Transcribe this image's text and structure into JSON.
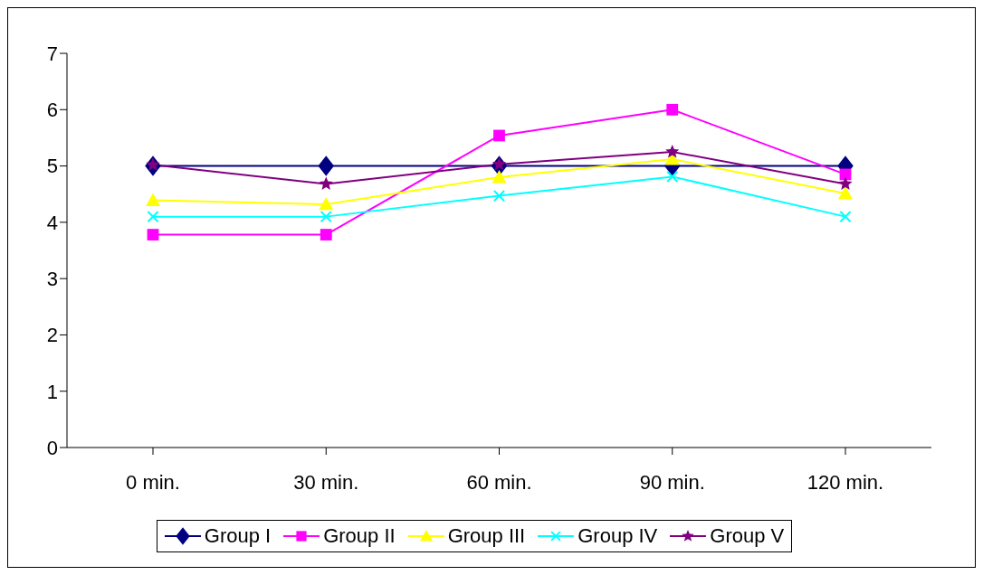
{
  "chart_data": {
    "type": "line",
    "categories": [
      "0 min.",
      "30 min.",
      "60 min.",
      "90 min.",
      "120 min."
    ],
    "ylim": [
      0,
      7
    ],
    "yticks": [
      0,
      1,
      2,
      3,
      4,
      5,
      6,
      7
    ],
    "grid": false,
    "legend": "bottom",
    "series": [
      {
        "name": "Group I",
        "color": "#000080",
        "marker": "diamond",
        "values": [
          5.0,
          5.0,
          5.0,
          5.0,
          5.0
        ]
      },
      {
        "name": "Group II",
        "color": "#ff00ff",
        "marker": "square",
        "values": [
          3.78,
          3.78,
          5.54,
          6.0,
          4.85
        ]
      },
      {
        "name": "Group III",
        "color": "#ffff00",
        "marker": "triangle",
        "values": [
          4.39,
          4.32,
          4.8,
          5.12,
          4.51
        ]
      },
      {
        "name": "Group IV",
        "color": "#00ffff",
        "marker": "cross",
        "values": [
          4.1,
          4.1,
          4.47,
          4.81,
          4.1
        ]
      },
      {
        "name": "Group V",
        "color": "#800080",
        "marker": "star",
        "values": [
          5.02,
          4.68,
          5.03,
          5.25,
          4.68
        ]
      }
    ]
  }
}
